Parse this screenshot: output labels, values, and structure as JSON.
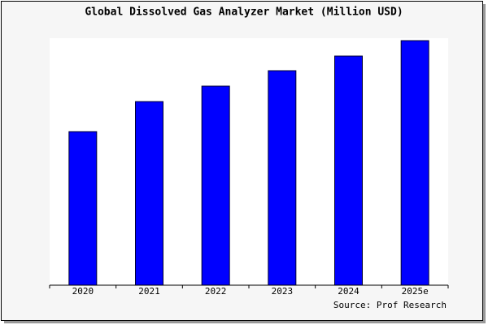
{
  "chart_data": {
    "type": "bar",
    "title": "Global Dissolved Gas Analyzer Market (Million USD)",
    "categories": [
      "2020",
      "2021",
      "2022",
      "2023",
      "2024",
      "2025e"
    ],
    "values": [
      189,
      226,
      245,
      264,
      282,
      301
    ],
    "color": "#0000ff",
    "ylim": [
      0,
      304
    ],
    "source": "Source: Prof Research"
  }
}
